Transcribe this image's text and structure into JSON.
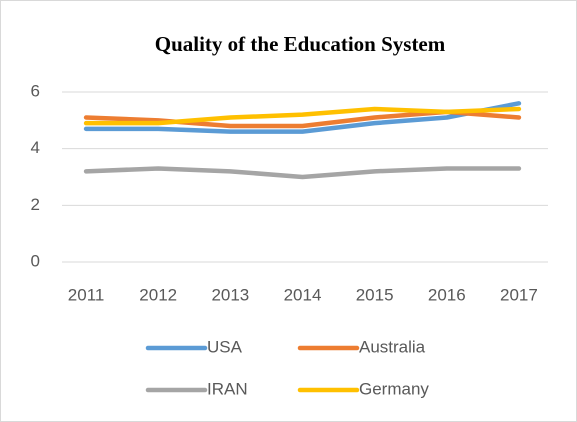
{
  "chart_data": {
    "type": "line",
    "title": "Quality of the Education System",
    "categories": [
      "2011",
      "2012",
      "2013",
      "2014",
      "2015",
      "2016",
      "2017"
    ],
    "series": [
      {
        "name": "USA",
        "color": "#5b9bd5",
        "values": [
          4.7,
          4.7,
          4.6,
          4.6,
          4.9,
          5.1,
          5.6
        ]
      },
      {
        "name": "Australia",
        "color": "#ed7d31",
        "values": [
          5.1,
          5.0,
          4.8,
          4.8,
          5.1,
          5.3,
          5.1
        ]
      },
      {
        "name": "IRAN",
        "color": "#a5a5a5",
        "values": [
          3.2,
          3.3,
          3.2,
          3.0,
          3.2,
          3.3,
          3.3
        ]
      },
      {
        "name": "Germany",
        "color": "#ffc000",
        "values": [
          4.9,
          4.9,
          5.1,
          5.2,
          5.4,
          5.3,
          5.4
        ]
      }
    ],
    "ylim": [
      0,
      6
    ],
    "yticks": [
      0,
      2,
      4,
      6
    ],
    "grid": true,
    "legend": "bottom"
  }
}
